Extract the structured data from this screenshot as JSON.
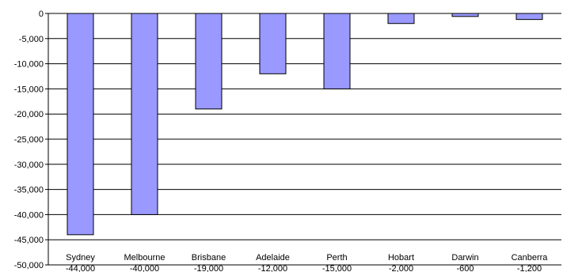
{
  "chart_data": {
    "type": "bar",
    "categories": [
      "Sydney",
      "Melbourne",
      "Brisbane",
      "Adelaide",
      "Perth",
      "Hobart",
      "Darwin",
      "Canberra"
    ],
    "values": [
      -44000,
      -40000,
      -19000,
      -12000,
      -15000,
      -2000,
      -600,
      -1200
    ],
    "value_labels": [
      "-44,000",
      "-40,000",
      "-19,000",
      "-12,000",
      "-15,000",
      "-2,000",
      "-600",
      "-1,200"
    ],
    "ylim": [
      -50000,
      0
    ],
    "yticks": [
      0,
      -5000,
      -10000,
      -15000,
      -20000,
      -25000,
      -30000,
      -35000,
      -40000,
      -45000,
      -50000
    ],
    "ytick_labels": [
      "0",
      "-5,000",
      "-10,000",
      "-15,000",
      "-20,000",
      "-25,000",
      "-30,000",
      "-35,000",
      "-40,000",
      "-45,000",
      "-50,000"
    ],
    "grid": true,
    "legend": "none",
    "bar_color": "#9999ff",
    "bar_stroke": "#000000"
  }
}
